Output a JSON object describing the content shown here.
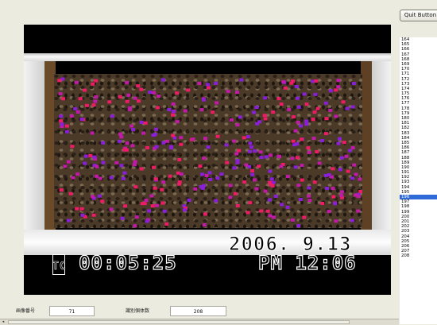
{
  "toolbar": {
    "quit_label": "Quit Button"
  },
  "video": {
    "date_stamp": "2006. 9.13",
    "tc_stamp": "00:05:25",
    "time_stamp": "PM 12:06",
    "tc_badge": "TC",
    "marker_colors": [
      "#ee1b66",
      "#8b1fd9",
      "#c21aa8"
    ]
  },
  "list": {
    "items": [
      "164",
      "165",
      "166",
      "167",
      "168",
      "169",
      "170",
      "171",
      "172",
      "173",
      "174",
      "175",
      "176",
      "177",
      "178",
      "179",
      "180",
      "181",
      "182",
      "183",
      "184",
      "185",
      "186",
      "187",
      "188",
      "189",
      "190",
      "191",
      "192",
      "193",
      "194",
      "195",
      "196",
      "197",
      "198",
      "199",
      "200",
      "201",
      "202",
      "203",
      "204",
      "205",
      "206",
      "207",
      "208"
    ],
    "selected": "196"
  },
  "fields": {
    "image_number_label": "画像番号",
    "image_number_value": "71",
    "identified_count_label": "識別個体数",
    "identified_count_value": "208"
  },
  "scroll": {
    "left_arrow": "◂"
  }
}
